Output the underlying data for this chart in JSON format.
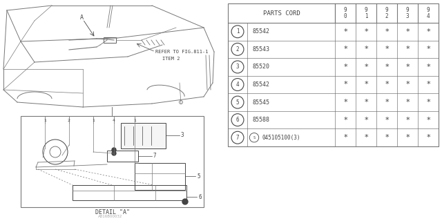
{
  "title": "A816B00032",
  "bg_color": "#ffffff",
  "parts_cord_header": "PARTS CORD",
  "year_cols": [
    "9\n0",
    "9\n1",
    "9\n2",
    "9\n3",
    "9\n4"
  ],
  "rows": [
    {
      "num": "1",
      "part": "85542"
    },
    {
      "num": "2",
      "part": "85543"
    },
    {
      "num": "3",
      "part": "85520"
    },
    {
      "num": "4",
      "part": "85542"
    },
    {
      "num": "5",
      "part": "85545"
    },
    {
      "num": "6",
      "part": "85588"
    },
    {
      "num": "7",
      "part": "045105100(3)",
      "prefix_circle_s": true
    }
  ],
  "refer_text1": "REFER TO FIG.811-1",
  "refer_text2": "ITEM 2",
  "detail_text": "DETAIL \"A\"",
  "label_a": "A",
  "font_color": "#444444",
  "line_color": "#777777"
}
